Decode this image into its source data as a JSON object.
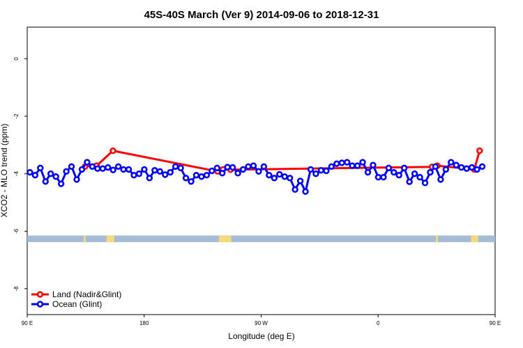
{
  "chart_data": {
    "type": "line",
    "title": "45S-40S March (Ver 9)   2014-09-06 to 2018-12-31",
    "xlabel": "Longitude (deg E)",
    "ylabel": "XCO2 - MLO trend (ppm)",
    "xlim": [
      90,
      450
    ],
    "ylim": [
      -8.9,
      1.1
    ],
    "x_ticks": [
      {
        "value": 90,
        "label": "90 E"
      },
      {
        "value": 180,
        "label": "180"
      },
      {
        "value": 270,
        "label": "90 W"
      },
      {
        "value": 360,
        "label": "0"
      },
      {
        "value": 450,
        "label": "90 E"
      },
      {
        "value": 540,
        "label": "180"
      }
    ],
    "y_ticks": [
      {
        "value": 0,
        "label": "0"
      },
      {
        "value": -2,
        "label": "-2"
      },
      {
        "value": -4,
        "label": "-4"
      },
      {
        "value": -6,
        "label": "-6"
      },
      {
        "value": -8,
        "label": "-8"
      }
    ],
    "legend_position": "bottom-left",
    "land_band": {
      "y_top": -6.15,
      "y_bottom": -6.38,
      "ocean_color": "#a4bcd8",
      "land_color": "#f5d97a"
    },
    "land_patches": [
      [
        133.5,
        135.0
      ],
      [
        151.0,
        157.0
      ],
      [
        237.5,
        247.0
      ],
      [
        404.5,
        406.0
      ],
      [
        431.5,
        437.0
      ]
    ],
    "series": [
      {
        "name": "Land (Nadir&Glint)",
        "color": "#ff0000",
        "x": [
          134.5,
          143.4,
          156,
          236.5,
          240.6,
          246.5,
          401.5,
          405.5,
          434.0,
          438.1
        ],
        "y": [
          -3.75,
          -3.72,
          -3.2,
          -3.92,
          -3.85,
          -3.86,
          -3.76,
          -3.72,
          -3.85,
          -3.2
        ]
      },
      {
        "name": "Ocean (Glint)",
        "color": "#0000ff",
        "x": [
          92.1,
          96.1,
          100.1,
          104.1,
          108.1,
          112.1,
          116.1,
          120.1,
          124.1,
          128.1,
          132.1,
          136.1,
          140.1,
          144.1,
          148.1,
          152.1,
          156.1,
          160.1,
          164.1,
          168.1,
          172.1,
          176.1,
          180.1,
          184.1,
          188.1,
          192.1,
          196.1,
          200.1,
          204.1,
          208.1,
          212.1,
          216.1,
          220.1,
          224.1,
          228.1,
          232.1,
          236.1,
          240.1,
          244.1,
          248.1,
          252.1,
          256.1,
          260.1,
          264.1,
          268.1,
          272.1,
          276.1,
          280.1,
          284.1,
          288.1,
          292.1,
          296.1,
          300.1,
          304.1,
          308.1,
          312.1,
          316.1,
          320.1,
          324.1,
          328.1,
          332.1,
          336.1,
          340.1,
          344.1,
          348.1,
          352.1,
          356.1,
          360.1,
          364.1,
          368.1,
          372.1,
          376.1,
          380.1,
          384.1,
          388.1,
          392.1,
          396.1,
          400.1,
          404.1,
          408.1,
          412.1,
          416.1,
          420.1,
          424.1,
          428.1,
          432.1,
          436.1,
          440.1
        ],
        "y": [
          -3.95,
          -4.05,
          -3.8,
          -4.27,
          -4.0,
          -4.1,
          -4.35,
          -3.92,
          -3.75,
          -4.2,
          -3.85,
          -3.6,
          -3.75,
          -3.82,
          -3.82,
          -3.78,
          -3.87,
          -3.75,
          -3.85,
          -3.85,
          -4.05,
          -4.0,
          -3.85,
          -4.15,
          -3.88,
          -3.92,
          -4.03,
          -3.95,
          -3.75,
          -3.8,
          -4.15,
          -4.27,
          -4.05,
          -4.1,
          -4.05,
          -3.9,
          -3.8,
          -3.98,
          -3.77,
          -3.78,
          -3.98,
          -3.85,
          -3.75,
          -3.72,
          -3.92,
          -3.75,
          -4.05,
          -4.15,
          -4.02,
          -4.1,
          -4.15,
          -4.55,
          -4.25,
          -4.62,
          -3.85,
          -4.0,
          -3.88,
          -3.9,
          -3.75,
          -3.65,
          -3.62,
          -3.6,
          -3.72,
          -3.72,
          -3.6,
          -3.95,
          -3.7,
          -4.12,
          -4.12,
          -3.8,
          -3.95,
          -4.05,
          -3.8,
          -4.28,
          -4.0,
          -4.12,
          -4.32,
          -3.95,
          -3.75,
          -4.2,
          -3.85,
          -3.6,
          -3.7,
          -3.78,
          -3.82,
          -3.78,
          -3.85,
          -3.75
        ]
      }
    ]
  }
}
